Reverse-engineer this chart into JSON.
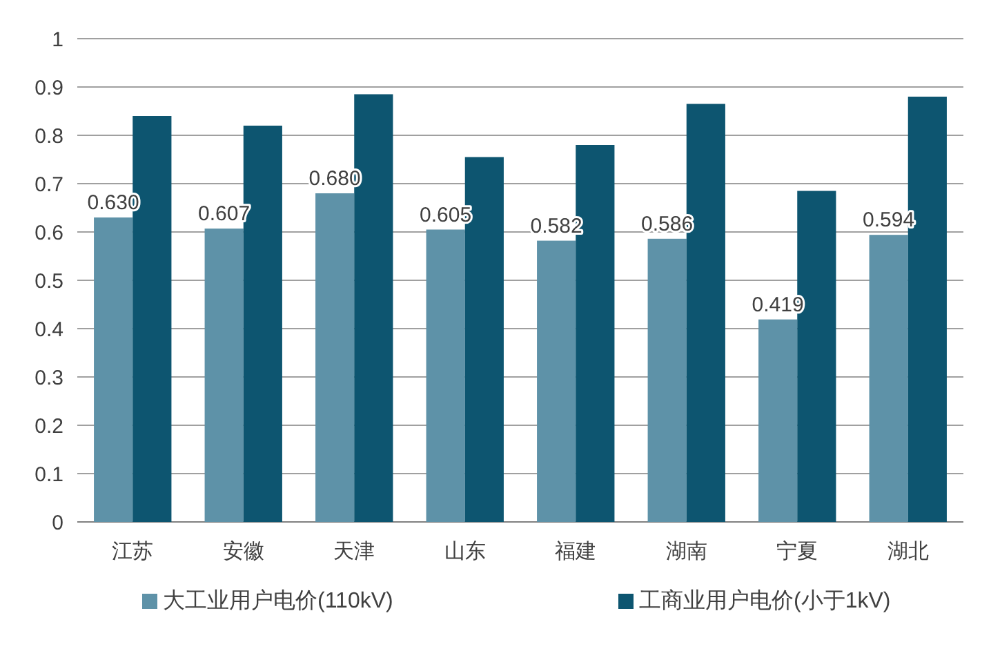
{
  "chart_data": {
    "type": "bar",
    "categories": [
      "江苏",
      "安徽",
      "天津",
      "山东",
      "福建",
      "湖南",
      "宁夏",
      "湖北"
    ],
    "series": [
      {
        "name": "大工业用户电价(110kV)",
        "color": "#5e92a8",
        "values": [
          0.63,
          0.607,
          0.68,
          0.605,
          0.582,
          0.586,
          0.419,
          0.594
        ],
        "value_labels": [
          "0.630",
          "0.607",
          "0.680",
          "0.605",
          "0.582",
          "0.586",
          "0.419",
          "0.594"
        ]
      },
      {
        "name": "工商业用户电价(小于1kV)",
        "color": "#0d5570",
        "values": [
          0.84,
          0.82,
          0.885,
          0.755,
          0.78,
          0.865,
          0.685,
          0.88
        ]
      }
    ],
    "ylim": [
      0,
      1
    ],
    "yticks": [
      0,
      0.1,
      0.2,
      0.3,
      0.4,
      0.5,
      0.6,
      0.7,
      0.8,
      0.9,
      1
    ],
    "grid": "y",
    "legend": "bottom"
  }
}
